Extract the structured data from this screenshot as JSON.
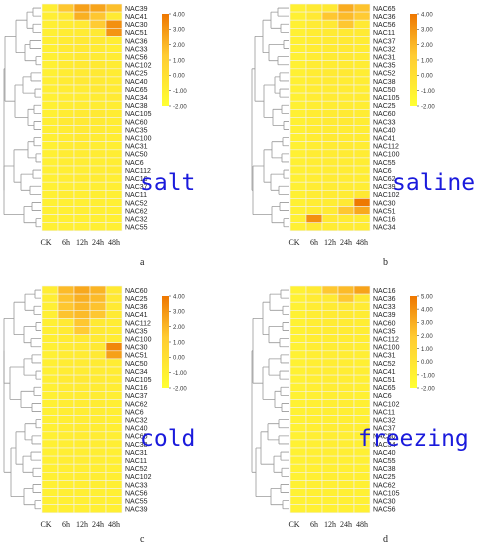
{
  "colors": {
    "low": "#ffff33",
    "mid": "#ffcc33",
    "high": "#ee7700",
    "grid": "#f2f2f2",
    "tree": "#9a9a9a",
    "label_blue": "#1a1adc"
  },
  "chart_data": [
    {
      "type": "heatmap",
      "id": "a",
      "panel_letter": "a",
      "condition": "salt",
      "columns": [
        "CK",
        "6h",
        "12h",
        "24h",
        "48h"
      ],
      "rows": [
        "NAC39",
        "NAC41",
        "NAC30",
        "NAC51",
        "NAC36",
        "NAC33",
        "NAC56",
        "NAC102",
        "NAC25",
        "NAC40",
        "NAC65",
        "NAC34",
        "NAC38",
        "NAC105",
        "NAC60",
        "NAC35",
        "NAC100",
        "NAC31",
        "NAC50",
        "NAC6",
        "NAC112",
        "NAC16",
        "NAC37",
        "NAC11",
        "NAC52",
        "NAC62",
        "NAC32",
        "NAC55"
      ],
      "values": [
        [
          0.3,
          1.2,
          2.2,
          2.1,
          1.4
        ],
        [
          0.3,
          0.9,
          1.8,
          1.2,
          0.8
        ],
        [
          0.1,
          0.6,
          0.9,
          1.1,
          2.6
        ],
        [
          0.1,
          0.5,
          0.7,
          0.9,
          2.5
        ],
        [
          0.1,
          0.7,
          1.0,
          0.8,
          0.4
        ],
        [
          0.0,
          0.8,
          0.9,
          0.7,
          0.3
        ],
        [
          0.0,
          0.6,
          0.9,
          0.7,
          0.6
        ],
        [
          0.0,
          0.7,
          1.0,
          0.9,
          0.5
        ],
        [
          0.0,
          0.5,
          0.8,
          0.9,
          0.6
        ],
        [
          0.2,
          0.7,
          0.9,
          0.8,
          0.5
        ],
        [
          0.1,
          0.5,
          0.6,
          1.0,
          0.7
        ],
        [
          0.0,
          0.4,
          0.4,
          0.6,
          0.8
        ],
        [
          0.0,
          0.4,
          0.6,
          0.5,
          0.4
        ],
        [
          0.0,
          0.6,
          0.8,
          0.9,
          0.5
        ],
        [
          0.3,
          0.9,
          1.0,
          0.8,
          0.5
        ],
        [
          0.2,
          0.6,
          0.8,
          0.7,
          0.4
        ],
        [
          0.1,
          0.6,
          0.8,
          0.6,
          0.4
        ],
        [
          0.0,
          0.5,
          0.7,
          0.4,
          0.3
        ],
        [
          0.0,
          0.6,
          0.5,
          0.5,
          0.4
        ],
        [
          0.0,
          0.4,
          0.4,
          0.3,
          0.4
        ],
        [
          0.0,
          0.3,
          0.3,
          0.4,
          0.5
        ],
        [
          0.0,
          0.4,
          0.5,
          0.6,
          0.3
        ],
        [
          0.0,
          0.3,
          0.3,
          0.3,
          0.3
        ],
        [
          0.0,
          0.4,
          0.3,
          0.3,
          0.2
        ],
        [
          0.0,
          0.2,
          0.2,
          0.3,
          0.2
        ],
        [
          0.0,
          0.2,
          0.3,
          0.2,
          0.2
        ],
        [
          0.0,
          0.1,
          0.2,
          0.1,
          0.1
        ],
        [
          0.0,
          0.1,
          0.1,
          0.1,
          0.1
        ]
      ],
      "scale": {
        "min": -2.0,
        "max": 4.0,
        "ticks": [
          "4.00",
          "3.00",
          "2.00",
          "1.00",
          "0.00",
          "-1.00",
          "-2.00"
        ]
      }
    },
    {
      "type": "heatmap",
      "id": "b",
      "panel_letter": "b",
      "condition": "saline",
      "columns": [
        "CK",
        "6h",
        "12h",
        "24h",
        "48h"
      ],
      "rows": [
        "NAC65",
        "NAC36",
        "NAC56",
        "NAC11",
        "NAC37",
        "NAC32",
        "NAC31",
        "NAC35",
        "NAC52",
        "NAC38",
        "NAC50",
        "NAC105",
        "NAC25",
        "NAC60",
        "NAC33",
        "NAC40",
        "NAC41",
        "NAC112",
        "NAC100",
        "NAC55",
        "NAC6",
        "NAC62",
        "NAC39",
        "NAC102",
        "NAC30",
        "NAC51",
        "NAC16",
        "NAC34"
      ],
      "values": [
        [
          0.0,
          0.8,
          1.0,
          1.9,
          1.3
        ],
        [
          0.0,
          0.9,
          1.2,
          1.5,
          1.1
        ],
        [
          0.0,
          0.7,
          0.9,
          1.2,
          0.9
        ],
        [
          0.0,
          0.6,
          0.8,
          1.0,
          0.8
        ],
        [
          0.0,
          0.5,
          0.7,
          0.9,
          0.6
        ],
        [
          0.0,
          0.6,
          0.7,
          1.0,
          0.6
        ],
        [
          0.0,
          0.5,
          0.7,
          0.9,
          0.5
        ],
        [
          0.0,
          0.5,
          0.6,
          0.7,
          0.5
        ],
        [
          0.0,
          0.6,
          0.8,
          0.9,
          0.4
        ],
        [
          0.0,
          0.5,
          0.7,
          0.6,
          0.4
        ],
        [
          0.0,
          0.5,
          0.6,
          0.7,
          0.3
        ],
        [
          0.0,
          0.6,
          0.7,
          0.6,
          0.5
        ],
        [
          0.0,
          0.4,
          0.5,
          0.6,
          0.4
        ],
        [
          0.0,
          0.6,
          0.7,
          0.8,
          0.6
        ],
        [
          0.0,
          0.5,
          0.8,
          0.9,
          0.5
        ],
        [
          0.0,
          0.5,
          0.6,
          0.6,
          0.4
        ],
        [
          0.0,
          0.6,
          0.8,
          0.7,
          0.5
        ],
        [
          0.0,
          0.4,
          0.7,
          0.8,
          0.5
        ],
        [
          0.0,
          0.5,
          0.6,
          0.7,
          0.5
        ],
        [
          0.0,
          0.4,
          0.5,
          0.5,
          0.4
        ],
        [
          0.0,
          0.3,
          0.4,
          0.5,
          0.3
        ],
        [
          0.0,
          0.4,
          0.5,
          0.6,
          0.4
        ],
        [
          0.0,
          0.5,
          0.6,
          0.5,
          0.4
        ],
        [
          0.0,
          0.6,
          0.7,
          0.6,
          0.9
        ],
        [
          0.0,
          0.5,
          0.6,
          1.0,
          3.2
        ],
        [
          0.0,
          0.6,
          0.8,
          1.2,
          2.0
        ],
        [
          0.0,
          2.6,
          0.9,
          0.7,
          0.6
        ],
        [
          0.0,
          0.8,
          0.6,
          0.5,
          0.5
        ]
      ],
      "scale": {
        "min": -2.0,
        "max": 4.0,
        "ticks": [
          "4.00",
          "3.00",
          "2.00",
          "1.00",
          "0.00",
          "-1.00",
          "-2.00"
        ]
      }
    },
    {
      "type": "heatmap",
      "id": "c",
      "panel_letter": "c",
      "condition": "cold",
      "columns": [
        "CK",
        "6h",
        "12h",
        "24h",
        "48h"
      ],
      "rows": [
        "NAC60",
        "NAC25",
        "NAC36",
        "NAC41",
        "NAC112",
        "NAC35",
        "NAC100",
        "NAC30",
        "NAC51",
        "NAC50",
        "NAC34",
        "NAC105",
        "NAC16",
        "NAC37",
        "NAC62",
        "NAC6",
        "NAC32",
        "NAC40",
        "NAC65",
        "NAC38",
        "NAC31",
        "NAC11",
        "NAC52",
        "NAC102",
        "NAC33",
        "NAC56",
        "NAC55",
        "NAC39"
      ],
      "values": [
        [
          0.4,
          1.5,
          2.0,
          1.7,
          1.0
        ],
        [
          0.3,
          1.3,
          1.8,
          1.5,
          0.9
        ],
        [
          0.2,
          1.2,
          1.6,
          1.3,
          0.8
        ],
        [
          0.2,
          1.3,
          1.5,
          1.2,
          0.8
        ],
        [
          0.2,
          1.0,
          1.2,
          1.0,
          0.6
        ],
        [
          0.1,
          0.8,
          1.1,
          0.9,
          0.6
        ],
        [
          0.1,
          0.7,
          1.0,
          0.8,
          0.5
        ],
        [
          0.0,
          0.6,
          0.8,
          1.0,
          2.8
        ],
        [
          0.0,
          0.6,
          0.7,
          0.9,
          2.2
        ],
        [
          0.1,
          0.6,
          0.7,
          0.7,
          0.5
        ],
        [
          0.0,
          0.5,
          0.6,
          0.6,
          0.5
        ],
        [
          0.1,
          0.8,
          0.9,
          0.7,
          0.5
        ],
        [
          0.0,
          0.5,
          0.5,
          0.6,
          0.4
        ],
        [
          0.0,
          0.4,
          0.5,
          0.5,
          0.3
        ],
        [
          0.0,
          0.4,
          0.5,
          0.5,
          0.3
        ],
        [
          0.0,
          0.4,
          0.4,
          0.4,
          0.3
        ],
        [
          0.0,
          0.3,
          0.4,
          0.4,
          0.2
        ],
        [
          0.0,
          0.4,
          0.5,
          0.4,
          0.3
        ],
        [
          0.0,
          0.4,
          0.5,
          0.5,
          0.3
        ],
        [
          0.0,
          0.3,
          0.4,
          0.4,
          0.3
        ],
        [
          0.0,
          0.3,
          0.3,
          0.3,
          0.2
        ],
        [
          0.0,
          0.4,
          0.4,
          0.3,
          0.2
        ],
        [
          0.0,
          0.3,
          0.3,
          0.3,
          0.2
        ],
        [
          0.0,
          0.3,
          0.4,
          0.4,
          0.3
        ],
        [
          0.0,
          0.2,
          0.3,
          0.3,
          0.2
        ],
        [
          0.0,
          0.3,
          0.3,
          0.2,
          0.2
        ],
        [
          0.0,
          0.2,
          0.2,
          0.2,
          0.1
        ],
        [
          0.0,
          0.2,
          0.2,
          0.2,
          0.1
        ]
      ],
      "scale": {
        "min": -2.0,
        "max": 4.0,
        "ticks": [
          "4.00",
          "3.00",
          "2.00",
          "1.00",
          "0.00",
          "-1.00",
          "-2.00"
        ]
      }
    },
    {
      "type": "heatmap",
      "id": "d",
      "panel_letter": "d",
      "condition": "freezing",
      "columns": [
        "CK",
        "6h",
        "12h",
        "24h",
        "48h"
      ],
      "rows": [
        "NAC16",
        "NAC36",
        "NAC33",
        "NAC39",
        "NAC60",
        "NAC35",
        "NAC112",
        "NAC100",
        "NAC31",
        "NAC52",
        "NAC41",
        "NAC51",
        "NAC65",
        "NAC6",
        "NAC102",
        "NAC11",
        "NAC32",
        "NAC37",
        "NAC50",
        "NAC34",
        "NAC40",
        "NAC55",
        "NAC38",
        "NAC25",
        "NAC62",
        "NAC105",
        "NAC30",
        "NAC56"
      ],
      "values": [
        [
          0.0,
          1.0,
          1.4,
          1.8,
          2.6
        ],
        [
          0.0,
          0.8,
          1.0,
          1.4,
          1.1
        ],
        [
          0.0,
          0.7,
          0.9,
          1.1,
          0.8
        ],
        [
          0.0,
          0.6,
          0.8,
          1.0,
          0.7
        ],
        [
          0.0,
          0.6,
          0.8,
          0.9,
          0.6
        ],
        [
          0.0,
          0.5,
          0.7,
          0.8,
          0.5
        ],
        [
          0.0,
          0.5,
          0.6,
          0.7,
          0.5
        ],
        [
          0.0,
          0.5,
          0.6,
          0.7,
          0.4
        ],
        [
          0.0,
          0.4,
          0.6,
          0.6,
          0.4
        ],
        [
          0.0,
          0.4,
          0.5,
          0.6,
          0.3
        ],
        [
          0.0,
          0.5,
          0.6,
          0.6,
          0.4
        ],
        [
          0.0,
          0.4,
          0.5,
          0.5,
          0.3
        ],
        [
          0.0,
          0.4,
          0.5,
          0.5,
          0.3
        ],
        [
          0.0,
          0.3,
          0.4,
          0.4,
          0.2
        ],
        [
          0.0,
          0.3,
          0.4,
          0.5,
          0.3
        ],
        [
          0.0,
          0.3,
          0.4,
          0.4,
          0.2
        ],
        [
          0.0,
          0.3,
          0.3,
          0.4,
          0.2
        ],
        [
          0.0,
          0.4,
          0.5,
          0.5,
          0.3
        ],
        [
          0.0,
          0.4,
          0.5,
          0.4,
          0.3
        ],
        [
          0.0,
          0.3,
          0.4,
          0.4,
          0.2
        ],
        [
          0.0,
          0.3,
          0.4,
          0.4,
          0.2
        ],
        [
          0.0,
          0.3,
          0.3,
          0.3,
          0.2
        ],
        [
          0.0,
          0.3,
          0.3,
          0.3,
          0.2
        ],
        [
          0.0,
          0.3,
          0.4,
          0.4,
          0.3
        ],
        [
          0.0,
          0.3,
          0.3,
          0.3,
          0.2
        ],
        [
          0.0,
          0.3,
          0.3,
          0.3,
          0.2
        ],
        [
          0.0,
          0.2,
          0.2,
          0.3,
          0.2
        ],
        [
          0.0,
          0.2,
          0.2,
          0.2,
          0.1
        ]
      ],
      "scale": {
        "min": -2.0,
        "max": 5.0,
        "ticks": [
          "5.00",
          "4.00",
          "3.00",
          "2.00",
          "1.00",
          "0.00",
          "-1.00",
          "-2.00"
        ]
      }
    }
  ]
}
